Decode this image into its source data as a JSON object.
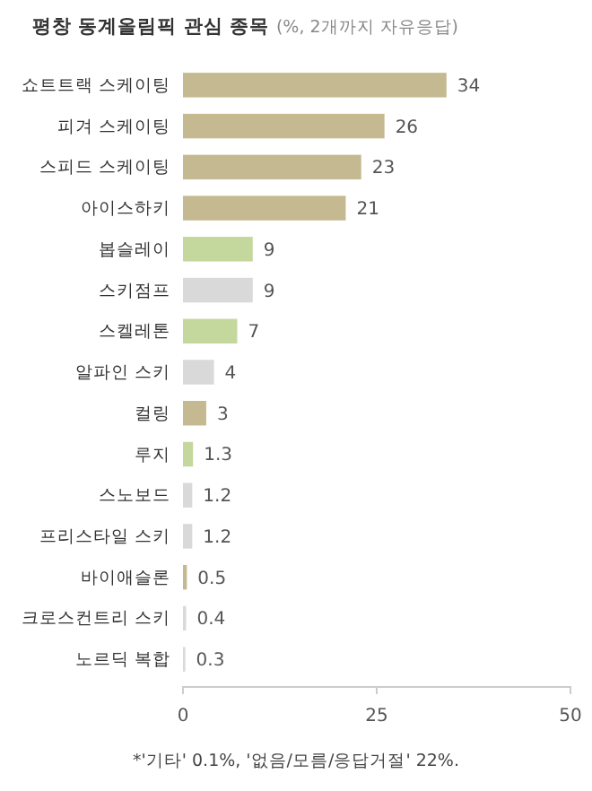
{
  "chart_data": {
    "type": "bar",
    "orientation": "horizontal",
    "title": "평창 동계올림픽 관심 종목",
    "subtitle": "(%, 2개까지 자유응답)",
    "categories": [
      "쇼트트랙 스케이팅",
      "피겨 스케이팅",
      "스피드 스케이팅",
      "아이스하키",
      "봅슬레이",
      "스키점프",
      "스켈레톤",
      "알파인 스키",
      "컬링",
      "루지",
      "스노보드",
      "프리스타일 스키",
      "바이애슬론",
      "크로스컨트리 스키",
      "노르딕 복합"
    ],
    "values": [
      34,
      26,
      23,
      21,
      9,
      9,
      7,
      4,
      3,
      1.3,
      1.2,
      1.2,
      0.5,
      0.4,
      0.3
    ],
    "colors": [
      "#c4b991",
      "#c4b991",
      "#c4b991",
      "#c4b991",
      "#c4d89e",
      "#d9d9d9",
      "#c4d89e",
      "#d9d9d9",
      "#c4b991",
      "#c4d89e",
      "#d9d9d9",
      "#d9d9d9",
      "#c4b991",
      "#d9d9d9",
      "#d9d9d9"
    ],
    "xlim": [
      0,
      50
    ],
    "xticks": [
      0,
      25,
      50
    ],
    "data_labels": true,
    "annotations": [
      "*'기타' 0.1%, '없음/모름/응답거절' 22%."
    ]
  }
}
